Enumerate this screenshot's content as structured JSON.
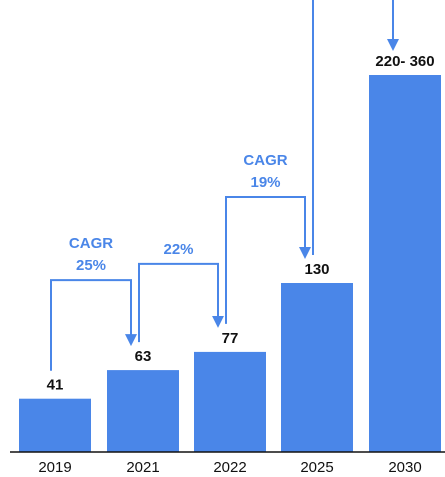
{
  "chart_data": {
    "type": "bar",
    "categories": [
      "2019",
      "2021",
      "2022",
      "2025",
      "2030"
    ],
    "values": [
      41,
      63,
      77,
      130,
      290
    ],
    "value_labels": [
      "41",
      "63",
      "77",
      "130",
      "220- 360"
    ],
    "title": "",
    "xlabel": "",
    "ylabel": "",
    "ylim": [
      0,
      300
    ],
    "grid": false,
    "legend": "none",
    "bar_color": "#4a86e8",
    "annotations": [
      {
        "from": 0,
        "to": 1,
        "lines": [
          "CAGR",
          "25%"
        ]
      },
      {
        "from": 1,
        "to": 2,
        "lines": [
          "22%"
        ]
      },
      {
        "from": 2,
        "to": 3,
        "lines": [
          "CAGR",
          "19%"
        ]
      },
      {
        "from": 3,
        "to": 4,
        "lines": []
      }
    ],
    "arrow_color": "#4a86e8"
  }
}
